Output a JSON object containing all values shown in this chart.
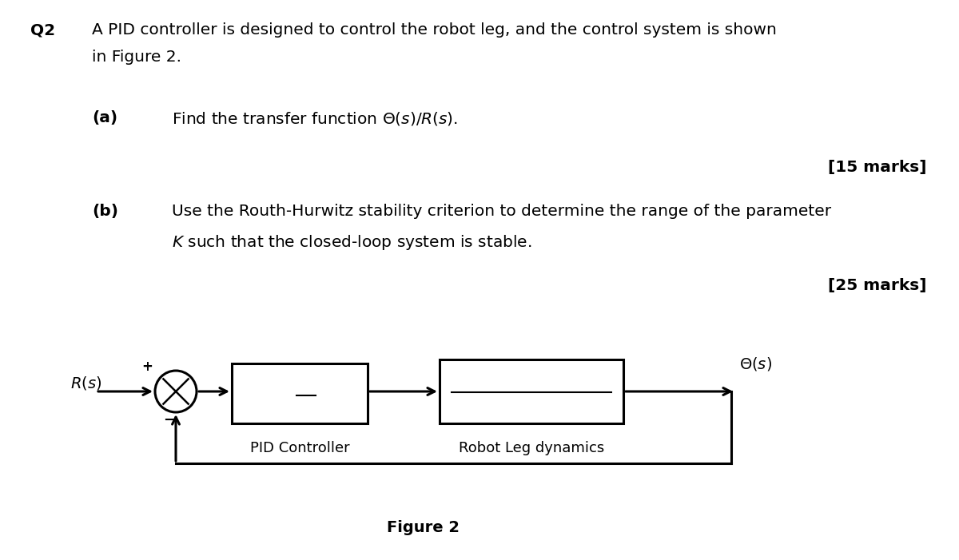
{
  "bg_color": "#ffffff",
  "text_color": "#000000",
  "q2_label": "Q2",
  "q2_text_line1": "A PID controller is designed to control the robot leg, and the control system is shown",
  "q2_text_line2": "in Figure 2.",
  "a_label": "(a)",
  "a_text": "Find the transfer function Θ(s)/R(s).",
  "a_marks": "[15 marks]",
  "b_label": "(b)",
  "b_text_line1": "Use the Routh-Hurwitz stability criterion to determine the range of the parameter",
  "b_text_line2": "K such that the closed-loop system is stable.",
  "b_marks": "[25 marks]",
  "figure_caption": "Figure 2",
  "pid_label": "PID Controller",
  "plant_label": "Robot Leg dynamics"
}
